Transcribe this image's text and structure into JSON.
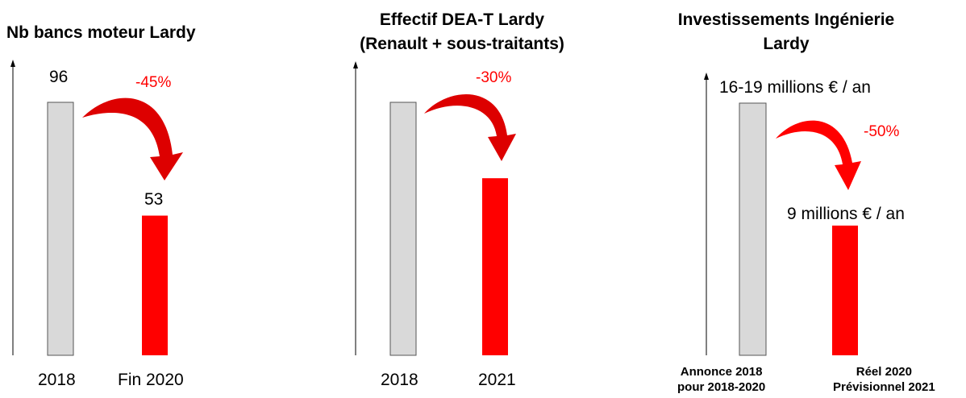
{
  "chart_data": [
    {
      "type": "bar",
      "title": "Nb bancs moteur Lardy",
      "categories": [
        "2018",
        "Fin 2020"
      ],
      "values": [
        96,
        53
      ],
      "data_labels": [
        "96",
        "53"
      ],
      "change_label": "-45%",
      "colors": [
        "#d9d9d9",
        "#ff0000"
      ]
    },
    {
      "type": "bar",
      "title": "Effectif DEA-T Lardy (Renault + sous-traitants)",
      "title_lines": [
        "Effectif DEA-T Lardy",
        "(Renault + sous-traitants)"
      ],
      "categories": [
        "2018",
        "2021"
      ],
      "values": [
        100,
        70
      ],
      "data_labels": [
        "",
        ""
      ],
      "change_label": "-30%",
      "colors": [
        "#d9d9d9",
        "#ff0000"
      ]
    },
    {
      "type": "bar",
      "title": "Investissements Ingénierie Lardy",
      "title_lines": [
        "Investissements Ingénierie",
        "Lardy"
      ],
      "categories": [
        "Annonce 2018 pour 2018-2020",
        "Réel 2020 Prévisionnel 2021"
      ],
      "category_lines": [
        [
          "Annonce 2018",
          "pour 2018-2020"
        ],
        [
          "Réel 2020",
          "Prévisionnel 2021"
        ]
      ],
      "values": [
        17.5,
        9
      ],
      "data_labels": [
        "16-19 millions € / an",
        "9 millions € / an"
      ],
      "change_label": "-50%",
      "colors": [
        "#d9d9d9",
        "#ff0000"
      ]
    }
  ]
}
